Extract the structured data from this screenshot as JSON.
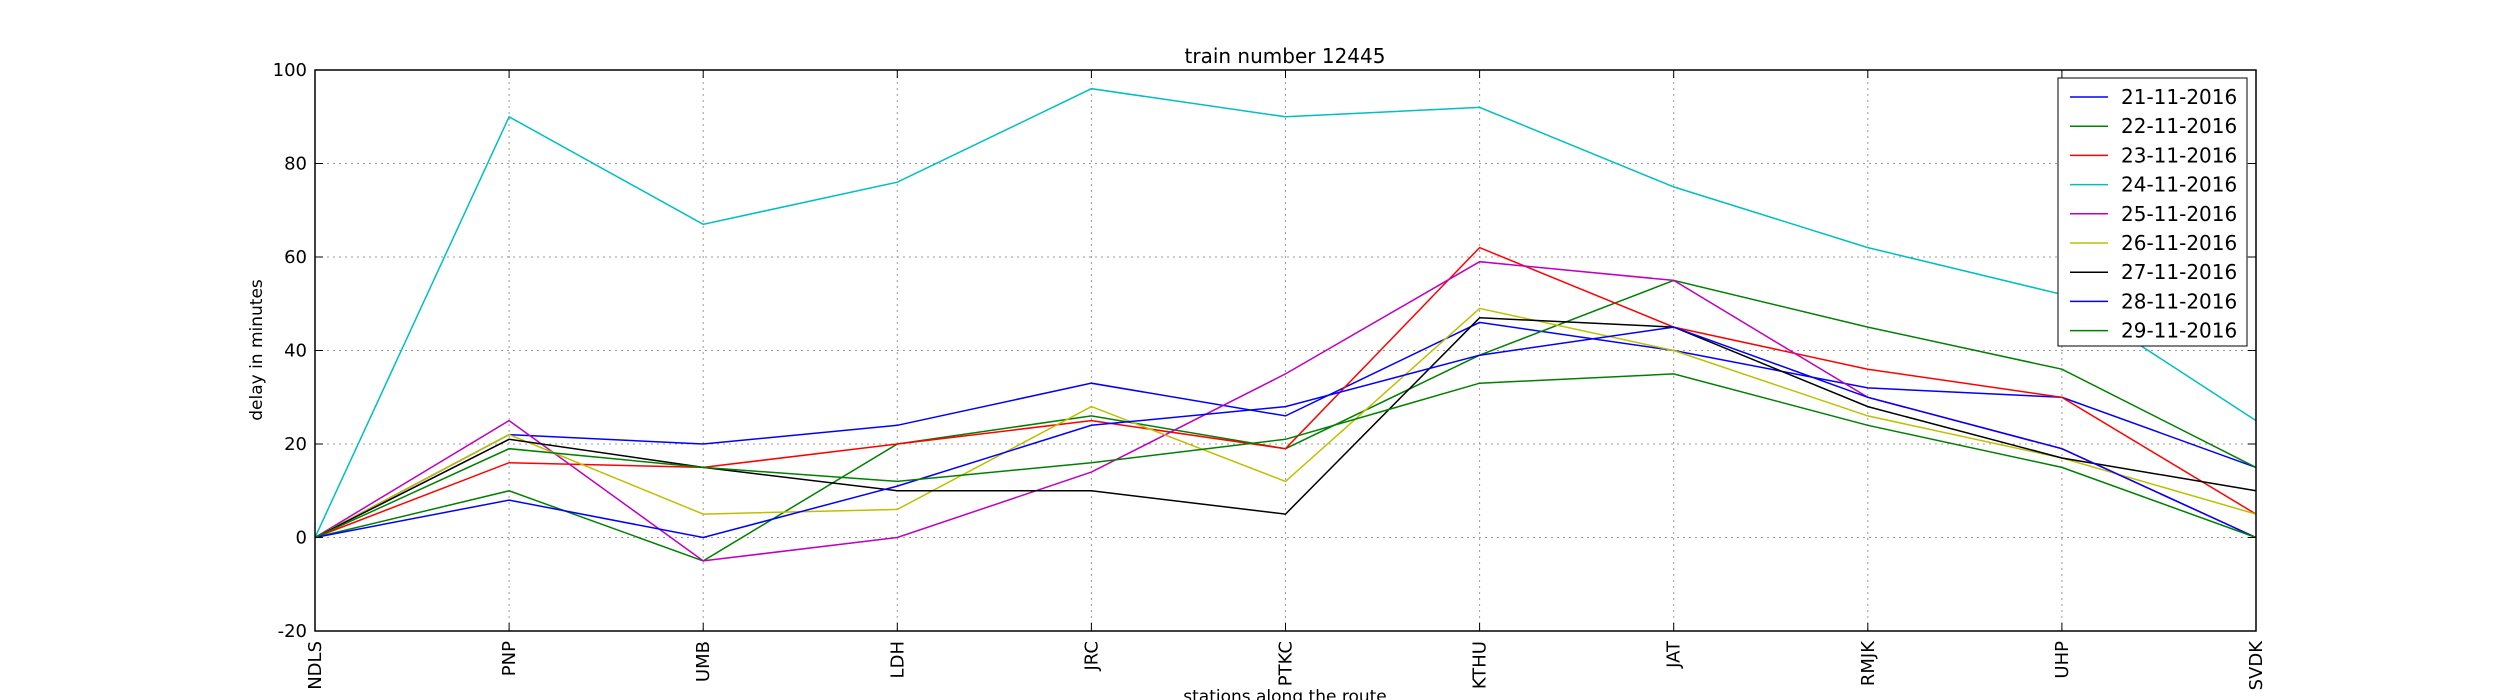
{
  "chart_data": {
    "type": "line",
    "title": "train number 12445",
    "xlabel": "stations along the route",
    "ylabel": "delay in minutes",
    "categories": [
      "NDLS",
      "PNP",
      "UMB",
      "LDH",
      "JRC",
      "PTKC",
      "KTHU",
      "JAT",
      "RMJK",
      "UHP",
      "SVDK"
    ],
    "ylim": [
      -20,
      100
    ],
    "yticks": [
      -20,
      0,
      20,
      40,
      60,
      80,
      100
    ],
    "grid": true,
    "legend_position": "top-right",
    "series": [
      {
        "name": "21-11-2016",
        "color": "#0000ff",
        "values": [
          0,
          22,
          20,
          24,
          33,
          26,
          46,
          40,
          32,
          30,
          15
        ]
      },
      {
        "name": "22-11-2016",
        "color": "#008000",
        "values": [
          0,
          10,
          -5,
          20,
          26,
          19,
          39,
          55,
          45,
          36,
          15
        ]
      },
      {
        "name": "23-11-2016",
        "color": "#ff0000",
        "values": [
          0,
          16,
          15,
          20,
          25,
          19,
          62,
          45,
          36,
          30,
          5
        ]
      },
      {
        "name": "24-11-2016",
        "color": "#00bfbf",
        "values": [
          0,
          90,
          67,
          76,
          96,
          90,
          92,
          75,
          62,
          52,
          25
        ]
      },
      {
        "name": "25-11-2016",
        "color": "#bf00bf",
        "values": [
          0,
          25,
          -5,
          0,
          14,
          35,
          59,
          55,
          30,
          19,
          0
        ]
      },
      {
        "name": "26-11-2016",
        "color": "#bfbf00",
        "values": [
          0,
          22,
          5,
          6,
          28,
          12,
          49,
          40,
          26,
          17,
          5
        ]
      },
      {
        "name": "27-11-2016",
        "color": "#000000",
        "values": [
          0,
          21,
          15,
          10,
          10,
          5,
          47,
          45,
          28,
          17,
          10
        ]
      },
      {
        "name": "28-11-2016",
        "color": "#0000ff",
        "values": [
          0,
          8,
          0,
          11,
          24,
          28,
          39,
          45,
          30,
          19,
          0
        ]
      },
      {
        "name": "29-11-2016",
        "color": "#008000",
        "values": [
          0,
          19,
          15,
          12,
          16,
          21,
          33,
          35,
          24,
          15,
          0
        ]
      }
    ]
  }
}
